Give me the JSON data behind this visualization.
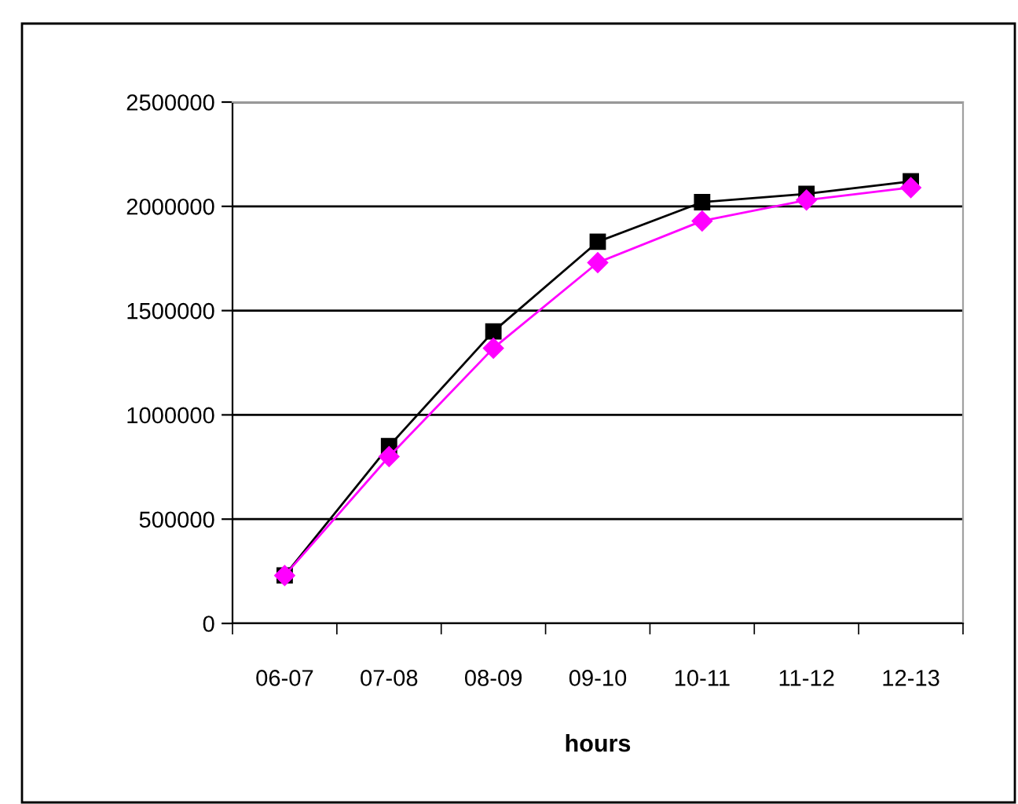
{
  "chart_data": {
    "type": "line",
    "xlabel": "hours",
    "categories": [
      "06-07",
      "07-08",
      "08-09",
      "09-10",
      "10-11",
      "11-12",
      "12-13"
    ],
    "series": [
      {
        "color": "#000000",
        "marker": "square",
        "values": [
          230000,
          850000,
          1400000,
          1830000,
          2020000,
          2060000,
          2120000
        ]
      },
      {
        "color": "#ff00ff",
        "marker": "diamond",
        "values": [
          230000,
          800000,
          1320000,
          1730000,
          1930000,
          2030000,
          2090000
        ]
      }
    ],
    "ylim": [
      0,
      2500000
    ],
    "yticks": [
      0,
      500000,
      1000000,
      1500000,
      2000000,
      2500000
    ],
    "grid": "y",
    "line_style": "solid"
  }
}
